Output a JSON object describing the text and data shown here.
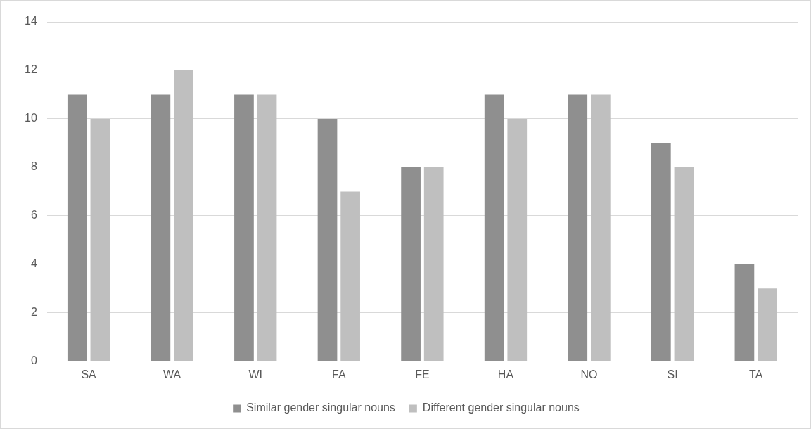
{
  "chart_data": {
    "type": "bar",
    "categories": [
      "SA",
      "WA",
      "WI",
      "FA",
      "FE",
      "HA",
      "NO",
      "SI",
      "TA"
    ],
    "series": [
      {
        "name": "Similar gender singular nouns",
        "color": "#8f8f8f",
        "values": [
          11,
          11,
          11,
          10,
          8,
          11,
          11,
          9,
          4
        ]
      },
      {
        "name": "Different gender singular nouns",
        "color": "#bfbfbf",
        "values": [
          10,
          12,
          11,
          7,
          8,
          10,
          11,
          8,
          3
        ]
      }
    ],
    "ylim": [
      0,
      14
    ],
    "yticks": [
      0,
      2,
      4,
      6,
      8,
      10,
      12,
      14
    ],
    "grid": "y",
    "legend": "bottom"
  }
}
